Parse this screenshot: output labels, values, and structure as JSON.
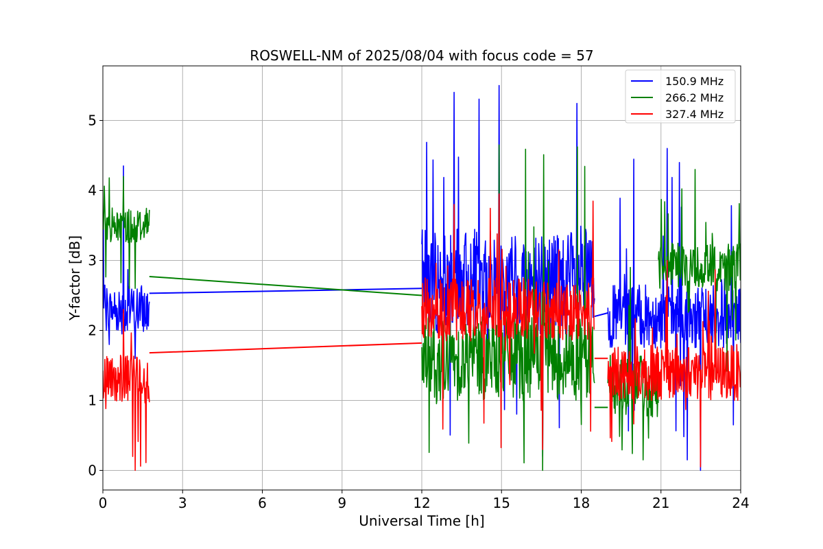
{
  "chart_data": {
    "type": "line",
    "title": "ROSWELL-NM of 2025/08/04 with focus code = 57",
    "xlabel": "Universal Time [h]",
    "ylabel": "Y-factor [dB]",
    "xlim": [
      0,
      24
    ],
    "ylim": [
      -0.28,
      5.78
    ],
    "xticks": [
      0,
      3,
      6,
      9,
      12,
      15,
      18,
      21,
      24
    ],
    "xtick_labels": [
      "0",
      "3",
      "6",
      "9",
      "12",
      "15",
      "18",
      "21",
      "24"
    ],
    "yticks": [
      0,
      1,
      2,
      3,
      4,
      5
    ],
    "ytick_labels": [
      "0",
      "1",
      "2",
      "3",
      "4",
      "5"
    ],
    "grid": true,
    "legend_position": "top-right",
    "series": [
      {
        "name": "150.9 MHz",
        "color": "#0000ff",
        "segments": [
          {
            "x_start": 0.0,
            "x_end": 1.75,
            "level": 2.3,
            "low": 1.6,
            "high": 4.35,
            "spread": 0.35
          },
          {
            "x_start": 12.0,
            "x_end": 18.5,
            "level": 2.7,
            "low": 0.2,
            "high": 5.5,
            "spread": 0.75
          },
          {
            "x_start": 19.0,
            "x_end": 24.0,
            "level": 2.2,
            "low": 0.0,
            "high": 4.6,
            "spread": 0.45
          }
        ],
        "gap_lines": [
          {
            "x": [
              1.75,
              12.0
            ],
            "y": [
              2.53,
              2.6
            ]
          },
          {
            "x": [
              18.5,
              19.0
            ],
            "y": [
              2.2,
              2.25
            ]
          }
        ]
      },
      {
        "name": "266.2 MHz",
        "color": "#008000",
        "segments": [
          {
            "x_start": 0.0,
            "x_end": 1.75,
            "level": 3.5,
            "low": 2.6,
            "high": 4.2,
            "spread": 0.25
          },
          {
            "x_start": 12.0,
            "x_end": 18.5,
            "level": 1.6,
            "low": 0.0,
            "high": 4.65,
            "spread": 0.6
          },
          {
            "x_start": 19.0,
            "x_end": 20.9,
            "level": 1.2,
            "low": 0.15,
            "high": 2.9,
            "spread": 0.45
          },
          {
            "x_start": 20.9,
            "x_end": 24.0,
            "level": 2.9,
            "low": 1.3,
            "high": 4.3,
            "spread": 0.35
          }
        ],
        "gap_lines": [
          {
            "x": [
              1.75,
              12.0
            ],
            "y": [
              2.77,
              2.5
            ]
          },
          {
            "x": [
              18.5,
              19.0
            ],
            "y": [
              0.9,
              0.9
            ]
          }
        ]
      },
      {
        "name": "327.4 MHz",
        "color": "#ff0000",
        "segments": [
          {
            "x_start": 0.0,
            "x_end": 1.75,
            "level": 1.3,
            "low": 0.0,
            "high": 2.3,
            "spread": 0.35
          },
          {
            "x_start": 12.0,
            "x_end": 18.5,
            "level": 2.3,
            "low": 0.3,
            "high": 3.95,
            "spread": 0.45
          },
          {
            "x_start": 19.0,
            "x_end": 24.0,
            "level": 1.4,
            "low": 0.05,
            "high": 3.0,
            "spread": 0.4
          }
        ],
        "gap_lines": [
          {
            "x": [
              1.75,
              12.0
            ],
            "y": [
              1.68,
              1.82
            ]
          },
          {
            "x": [
              18.5,
              19.0
            ],
            "y": [
              1.6,
              1.6
            ]
          }
        ]
      }
    ]
  }
}
